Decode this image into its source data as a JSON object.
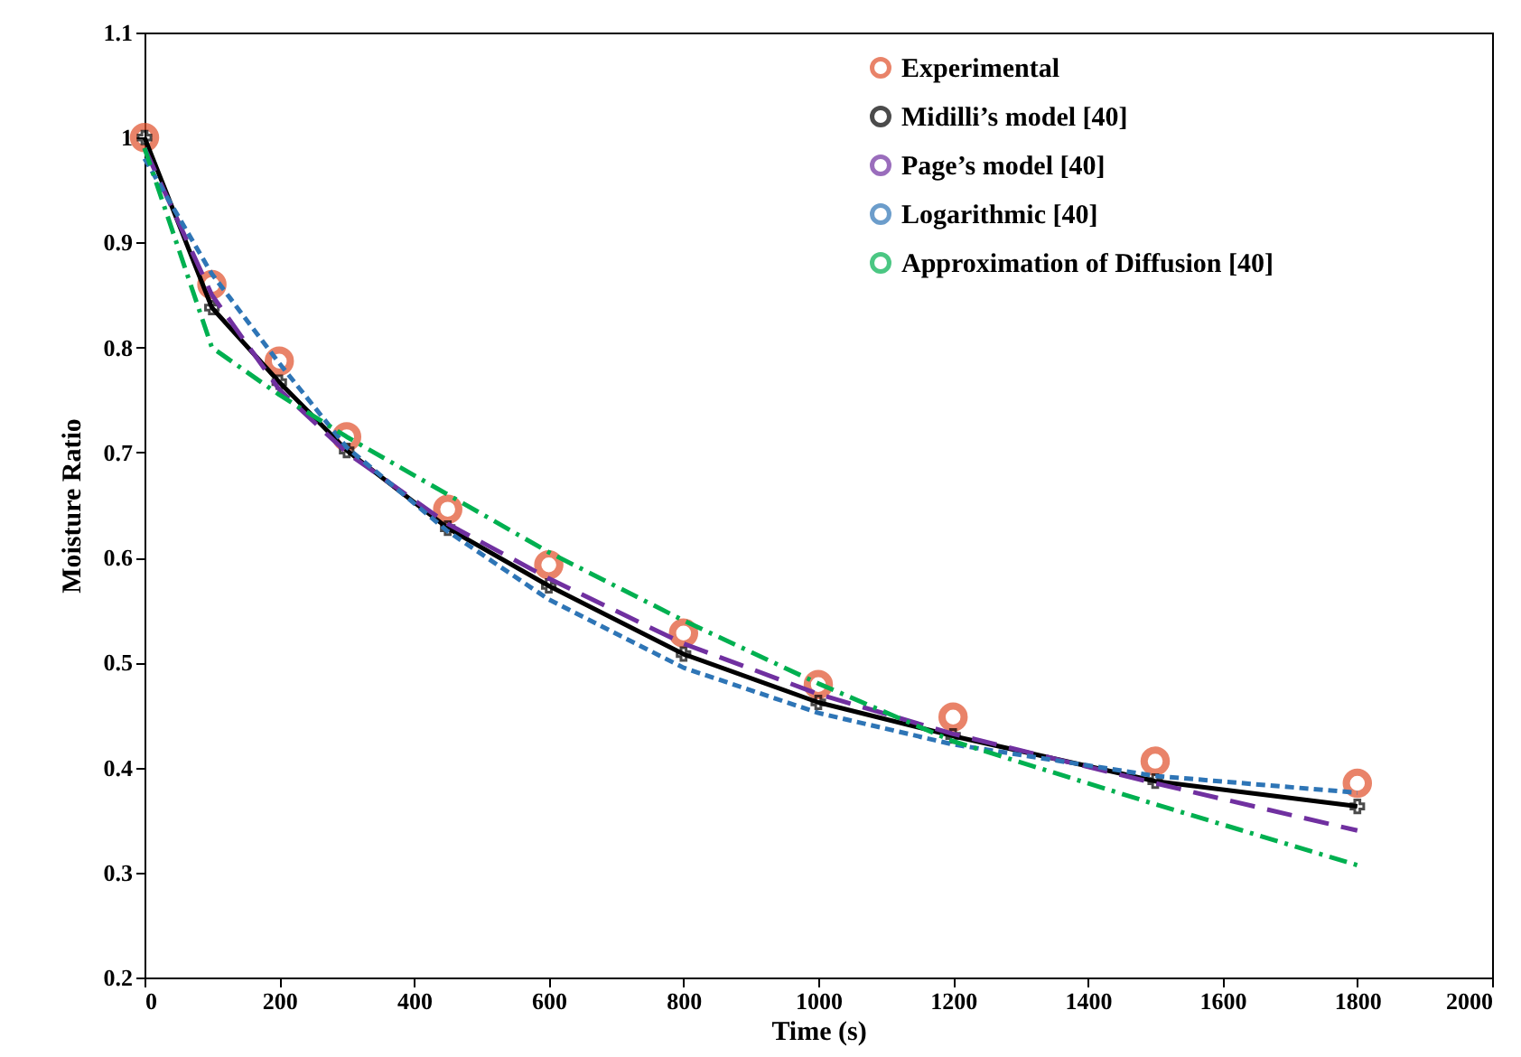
{
  "chart_data": {
    "type": "line",
    "xlabel": "Time (s)",
    "ylabel": "Moisture Ratio",
    "xlim": [
      0,
      2000
    ],
    "xticks": [
      0,
      200,
      400,
      600,
      800,
      1000,
      1200,
      1400,
      1600,
      1800,
      2000
    ],
    "ylim": [
      0.2,
      1.1
    ],
    "yticks": [
      0.2,
      0.3,
      0.4,
      0.5,
      0.6,
      0.7,
      0.8,
      0.9,
      1,
      1.1
    ],
    "grid": false,
    "legend": "top right",
    "x": [
      0,
      100,
      200,
      300,
      450,
      600,
      800,
      1000,
      1200,
      1500,
      1800
    ],
    "series": [
      {
        "name": "Experimental",
        "type": "scatter",
        "marker": "circle",
        "color": "#e0502a",
        "values": [
          1.0,
          0.86,
          0.787,
          0.715,
          0.646,
          0.593,
          0.528,
          0.479,
          0.448,
          0.406,
          0.385
        ]
      },
      {
        "name": "Midilli’s model [40]",
        "marker": "cross",
        "line_style": "solid",
        "color": "#000000",
        "values": [
          1.0,
          0.838,
          0.767,
          0.702,
          0.628,
          0.573,
          0.508,
          0.462,
          0.43,
          0.387,
          0.363
        ]
      },
      {
        "name": "Page’s model [40]",
        "marker": "none",
        "line_style": "dashed",
        "color": "#7030a0",
        "values": [
          0.99,
          0.85,
          0.76,
          0.7,
          0.632,
          0.58,
          0.518,
          0.47,
          0.432,
          0.385,
          0.34
        ]
      },
      {
        "name": "Logarithmic [40]",
        "marker": "none",
        "line_style": "dotted",
        "color": "#2e75b6",
        "values": [
          0.98,
          0.87,
          0.785,
          0.705,
          0.625,
          0.56,
          0.495,
          0.452,
          0.422,
          0.392,
          0.376
        ]
      },
      {
        "name": "Approximation of Diffusion [40]",
        "marker": "none",
        "line_style": "dashdot",
        "color": "#00b050",
        "values": [
          0.99,
          0.8,
          0.755,
          0.715,
          0.66,
          0.605,
          0.54,
          0.48,
          0.425,
          0.365,
          0.307
        ]
      }
    ]
  }
}
